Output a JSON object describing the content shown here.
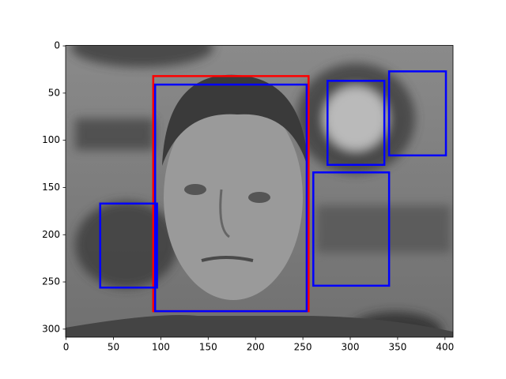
{
  "chart_data": {
    "type": "image",
    "xlim": [
      -0.5,
      408.5
    ],
    "ylim": [
      308.5,
      -0.5
    ],
    "xticks": [
      0,
      50,
      100,
      150,
      200,
      250,
      300,
      350,
      400
    ],
    "yticks": [
      0,
      50,
      100,
      150,
      200,
      250,
      300
    ],
    "boxes": [
      {
        "color": "#ff0000",
        "x": [
          92,
          256
        ],
        "y": [
          32,
          281
        ]
      },
      {
        "color": "#0000ff",
        "x": [
          94,
          254
        ],
        "y": [
          41,
          281
        ]
      },
      {
        "color": "#0000ff",
        "x": [
          36,
          96
        ],
        "y": [
          167,
          256
        ]
      },
      {
        "color": "#0000ff",
        "x": [
          276,
          336
        ],
        "y": [
          37,
          126
        ]
      },
      {
        "color": "#0000ff",
        "x": [
          341,
          401
        ],
        "y": [
          27,
          116
        ]
      },
      {
        "color": "#0000ff",
        "x": [
          261,
          341
        ],
        "y": [
          134,
          254
        ]
      }
    ]
  }
}
